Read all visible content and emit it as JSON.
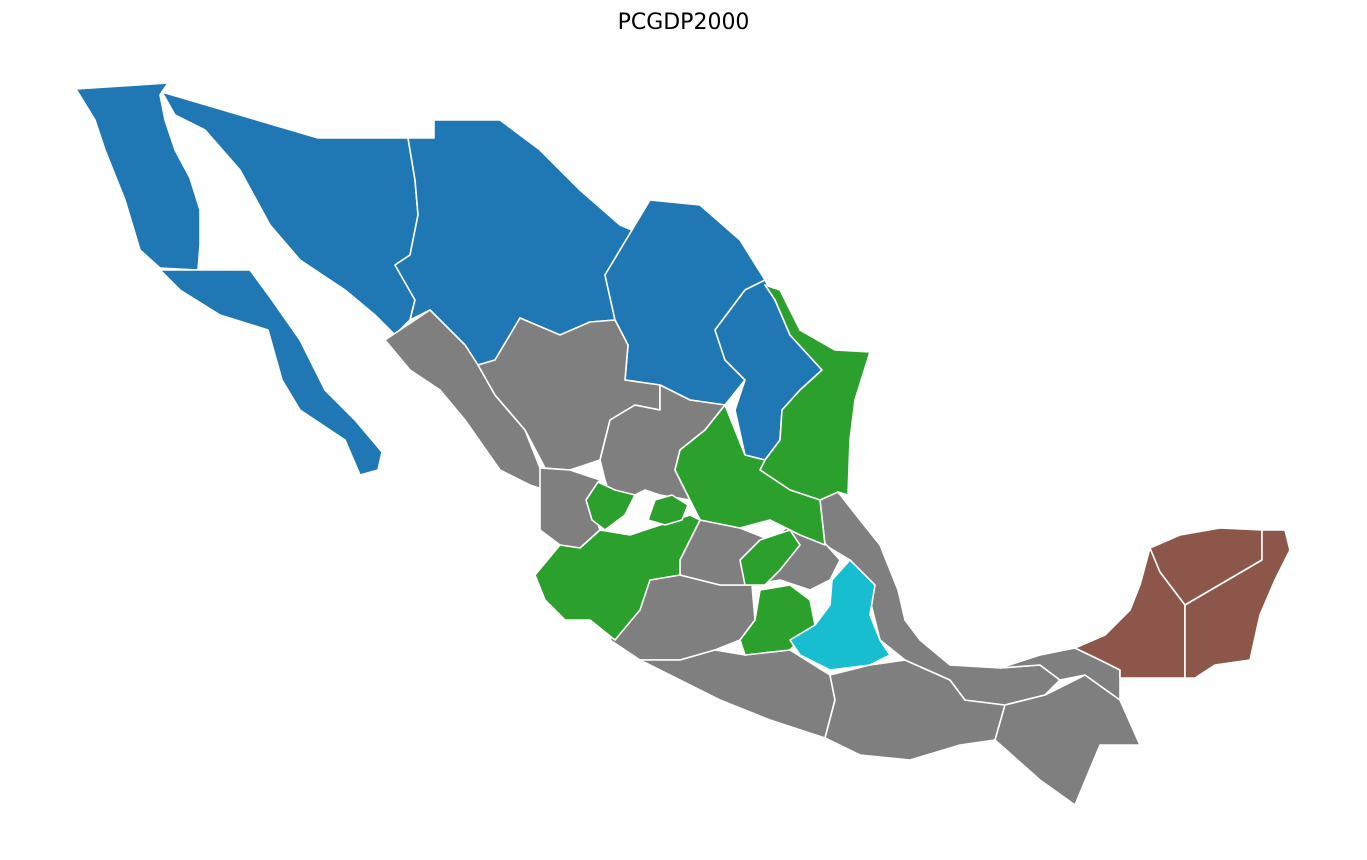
{
  "title": "PCGDP2000",
  "colors": {
    "cluster_blue": "#1f77b4",
    "cluster_gray": "#7f7f7f",
    "cluster_green": "#2ca02c",
    "cluster_cyan": "#17becf",
    "cluster_brown": "#8c564b",
    "border": "#ffffff",
    "background": "#ffffff"
  },
  "legend": "none",
  "axes": "off"
}
